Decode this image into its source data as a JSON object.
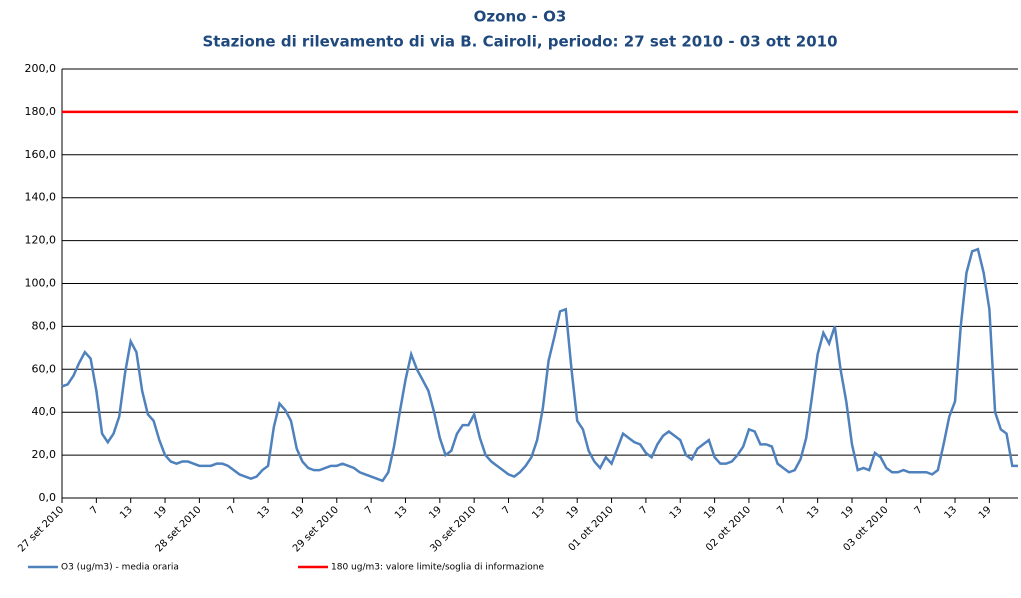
{
  "chart_data": {
    "type": "line",
    "title": "Ozono - O3",
    "subtitle": "Stazione di rilevamento di via B. Cairoli, periodo:  27 set 2010 - 03 ott 2010",
    "categories": [
      "27 set 2010",
      null,
      null,
      null,
      null,
      null,
      "7",
      null,
      null,
      null,
      null,
      null,
      "13",
      null,
      null,
      null,
      null,
      null,
      "19",
      null,
      null,
      null,
      null,
      null,
      "28 set 2010",
      null,
      null,
      null,
      null,
      null,
      "7",
      null,
      null,
      null,
      null,
      null,
      "13",
      null,
      null,
      null,
      null,
      null,
      "19",
      null,
      null,
      null,
      null,
      null,
      "29 set 2010",
      null,
      null,
      null,
      null,
      null,
      "7",
      null,
      null,
      null,
      null,
      null,
      "13",
      null,
      null,
      null,
      null,
      null,
      "19",
      null,
      null,
      null,
      null,
      null,
      "30 set 2010",
      null,
      null,
      null,
      null,
      null,
      "7",
      null,
      null,
      null,
      null,
      null,
      "13",
      null,
      null,
      null,
      null,
      null,
      "19",
      null,
      null,
      null,
      null,
      null,
      "01 ott 2010",
      null,
      null,
      null,
      null,
      null,
      "7",
      null,
      null,
      null,
      null,
      null,
      "13",
      null,
      null,
      null,
      null,
      null,
      "19",
      null,
      null,
      null,
      null,
      null,
      "02 ott 2010",
      null,
      null,
      null,
      null,
      null,
      "7",
      null,
      null,
      null,
      null,
      null,
      "13",
      null,
      null,
      null,
      null,
      null,
      "19",
      null,
      null,
      null,
      null,
      null,
      "03 ott 2010",
      null,
      null,
      null,
      null,
      null,
      "7",
      null,
      null,
      null,
      null,
      null,
      "13",
      null,
      null,
      null,
      null,
      null,
      "19",
      null,
      null,
      null,
      null,
      null
    ],
    "series": [
      {
        "name": "O3 (ug/m3)  - media oraria",
        "color": "#4f81bd",
        "values": [
          52,
          53,
          57,
          63,
          68,
          65,
          50,
          30,
          26,
          30,
          38,
          58,
          73,
          68,
          50,
          39,
          36,
          27,
          20,
          17,
          16,
          17,
          17,
          16,
          15,
          15,
          15,
          16,
          16,
          15,
          13,
          11,
          10,
          9,
          10,
          13,
          15,
          33,
          44,
          41,
          36,
          23,
          17,
          14,
          13,
          13,
          14,
          15,
          15,
          16,
          15,
          14,
          12,
          11,
          10,
          9,
          8,
          12,
          24,
          40,
          55,
          67,
          60,
          55,
          50,
          40,
          28,
          20,
          22,
          30,
          34,
          34,
          39,
          28,
          20,
          17,
          15,
          13,
          11,
          10,
          12,
          15,
          19,
          27,
          42,
          64,
          75,
          87,
          88,
          60,
          36,
          32,
          22,
          17,
          14,
          19,
          16,
          23,
          30,
          28,
          26,
          25,
          21,
          19,
          25,
          29,
          31,
          29,
          27,
          20,
          18,
          23,
          25,
          27,
          19,
          16,
          16,
          17,
          20,
          24,
          32,
          31,
          25,
          25,
          24,
          16,
          14,
          12,
          13,
          18,
          28,
          47,
          67,
          77,
          72,
          80,
          60,
          45,
          25,
          13,
          14,
          13,
          21,
          19,
          14,
          12,
          12,
          13,
          12,
          12,
          12,
          12,
          11,
          13,
          25,
          38,
          45,
          80,
          105,
          115,
          116,
          105,
          88,
          40,
          32,
          30,
          15,
          15
        ]
      },
      {
        "name": "180 ug/m3: valore limite/soglia di informazione",
        "color": "#ff0000",
        "values": [
          180,
          180,
          180,
          180,
          180,
          180,
          180,
          180,
          180,
          180,
          180,
          180,
          180,
          180,
          180,
          180,
          180,
          180,
          180,
          180,
          180,
          180,
          180,
          180,
          180,
          180,
          180,
          180,
          180,
          180,
          180,
          180,
          180,
          180,
          180,
          180,
          180,
          180,
          180,
          180,
          180,
          180,
          180,
          180,
          180,
          180,
          180,
          180,
          180,
          180,
          180,
          180,
          180,
          180,
          180,
          180,
          180,
          180,
          180,
          180,
          180,
          180,
          180,
          180,
          180,
          180,
          180,
          180,
          180,
          180,
          180,
          180,
          180,
          180,
          180,
          180,
          180,
          180,
          180,
          180,
          180,
          180,
          180,
          180,
          180,
          180,
          180,
          180,
          180,
          180,
          180,
          180,
          180,
          180,
          180,
          180,
          180,
          180,
          180,
          180,
          180,
          180,
          180,
          180,
          180,
          180,
          180,
          180,
          180,
          180,
          180,
          180,
          180,
          180,
          180,
          180,
          180,
          180,
          180,
          180,
          180,
          180,
          180,
          180,
          180,
          180,
          180,
          180,
          180,
          180,
          180,
          180,
          180,
          180,
          180,
          180,
          180,
          180,
          180,
          180,
          180,
          180,
          180,
          180,
          180,
          180,
          180,
          180,
          180,
          180,
          180,
          180,
          180,
          180,
          180,
          180,
          180,
          180,
          180,
          180,
          180,
          180,
          180,
          180,
          180,
          180,
          180,
          180
        ]
      }
    ],
    "ylim": [
      0,
      200
    ],
    "yticks": [
      {
        "value": 0,
        "label": "0,0"
      },
      {
        "value": 20,
        "label": "20,0"
      },
      {
        "value": 40,
        "label": "40,0"
      },
      {
        "value": 60,
        "label": "60,0"
      },
      {
        "value": 80,
        "label": "80,0"
      },
      {
        "value": 100,
        "label": "100,0"
      },
      {
        "value": 120,
        "label": "120,0"
      },
      {
        "value": 140,
        "label": "140,0"
      },
      {
        "value": 160,
        "label": "160,0"
      },
      {
        "value": 180,
        "label": "180,0"
      },
      {
        "value": 200,
        "label": "200,0"
      }
    ],
    "grid": true,
    "legend": "bottom-left"
  }
}
